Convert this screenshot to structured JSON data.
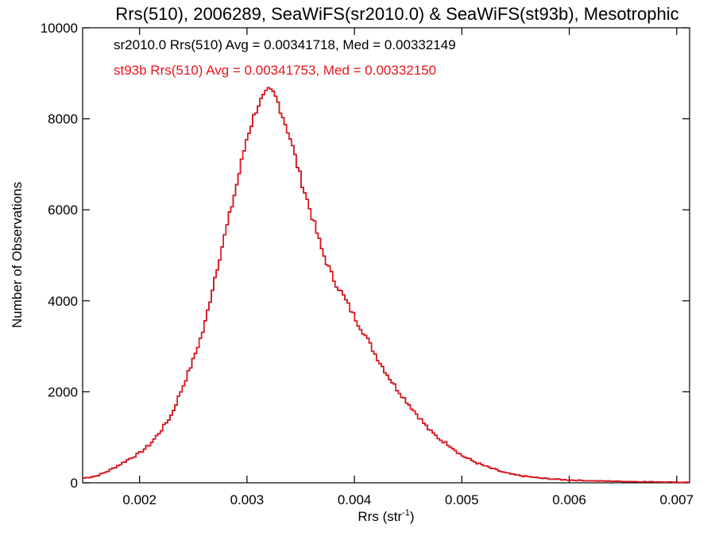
{
  "chart_data": {
    "type": "histogram",
    "title": "Rrs(510), 2006289, SeaWiFS(sr2010.0) & SeaWiFS(st93b), Mesotrophic",
    "xlabel": "Rrs (str",
    "xlabel_sup": "-1",
    "xlabel_end": ")",
    "ylabel": "Number of Observations",
    "xlim": [
      0.00147,
      0.00712
    ],
    "ylim": [
      0,
      10000
    ],
    "x_ticks": [
      0.002,
      0.003,
      0.004,
      0.005,
      0.006,
      0.007
    ],
    "x_tick_labels": [
      "0.002",
      "0.003",
      "0.004",
      "0.005",
      "0.006",
      "0.007"
    ],
    "y_ticks": [
      0,
      2000,
      4000,
      6000,
      8000,
      10000
    ],
    "y_tick_labels": [
      "0",
      "2000",
      "4000",
      "6000",
      "8000",
      "10000"
    ],
    "grid": false,
    "series": [
      {
        "name": "sr2010.0",
        "color": "#000000"
      },
      {
        "name": "st93b",
        "color": "#e8141c"
      }
    ],
    "annotations": [
      {
        "text": "sr2010.0 Rrs(510) Avg = 0.00341718, Med = 0.00332149",
        "color": "#000000"
      },
      {
        "text": "st93b Rrs(510) Avg = 0.00341753, Med = 0.00332150",
        "color": "#e8141c"
      }
    ],
    "profile_x": [
      0.00147,
      0.0016,
      0.0017,
      0.0018,
      0.0019,
      0.002,
      0.0021,
      0.0022,
      0.0023,
      0.0024,
      0.0025,
      0.0026,
      0.0027,
      0.0028,
      0.0029,
      0.003,
      0.0031,
      0.0032,
      0.00325,
      0.0033,
      0.0034,
      0.0035,
      0.0036,
      0.0037,
      0.0038,
      0.0039,
      0.004,
      0.0041,
      0.0042,
      0.0043,
      0.0044,
      0.0045,
      0.0046,
      0.0047,
      0.0048,
      0.0049,
      0.005,
      0.0051,
      0.0052,
      0.0053,
      0.0054,
      0.0055,
      0.0056,
      0.0057,
      0.0058,
      0.0059,
      0.006,
      0.0062,
      0.0064,
      0.0066,
      0.0068,
      0.007,
      0.00712
    ],
    "profile_y": [
      100,
      150,
      250,
      380,
      520,
      650,
      850,
      1150,
      1500,
      2100,
      2700,
      3400,
      4500,
      5500,
      6500,
      7600,
      8300,
      8600,
      8550,
      8300,
      7600,
      6700,
      5900,
      5100,
      4500,
      4100,
      3650,
      3250,
      2800,
      2400,
      2050,
      1750,
      1450,
      1150,
      950,
      800,
      600,
      480,
      380,
      300,
      220,
      170,
      140,
      110,
      90,
      75,
      60,
      45,
      35,
      25,
      20,
      15,
      12
    ]
  }
}
